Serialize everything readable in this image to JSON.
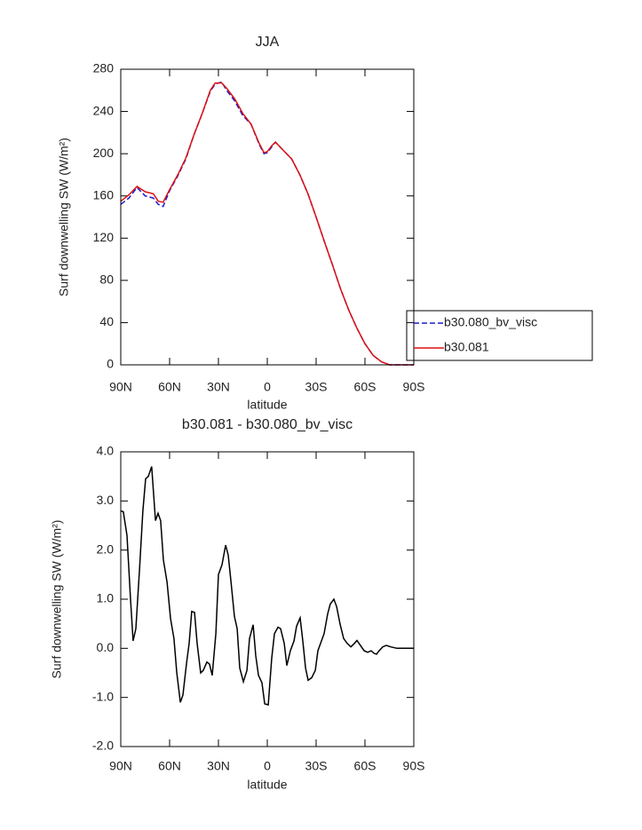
{
  "chart_data": [
    {
      "type": "line",
      "title": "JJA",
      "x_label": "latitude",
      "y_label": "Surf downwelling SW (W/m²)",
      "x": [
        90,
        85,
        80,
        75,
        70,
        67,
        64,
        60,
        55,
        50,
        45,
        40,
        35,
        32,
        28,
        25,
        20,
        15,
        10,
        5,
        2,
        0,
        -3,
        -5,
        -10,
        -15,
        -20,
        -25,
        -30,
        -35,
        -40,
        -45,
        -50,
        -55,
        -60,
        -65,
        -70,
        -75,
        -80,
        -85,
        -90
      ],
      "series": [
        {
          "name": "b30.080_bv_visc",
          "color": "#1a1acc",
          "linestyle": "dashed",
          "values": [
            152,
            158,
            168,
            160,
            158,
            152,
            150,
            165,
            179,
            195,
            218,
            238,
            259,
            266,
            268,
            260,
            250,
            236,
            228,
            209,
            200,
            201,
            207,
            211,
            203,
            195,
            180,
            162,
            140,
            117,
            95,
            72,
            52,
            35,
            20,
            9,
            3,
            0,
            0,
            0,
            0
          ]
        },
        {
          "name": "b30.081",
          "color": "#dd1111",
          "linestyle": "solid",
          "values": [
            155,
            161,
            169,
            164,
            162,
            155,
            154,
            166,
            180,
            196,
            218,
            238,
            260,
            267,
            267,
            262,
            252,
            238,
            228,
            210,
            201,
            202,
            208,
            211,
            203,
            195,
            180,
            162,
            140,
            117,
            95,
            72,
            52,
            35,
            20,
            9,
            3,
            0,
            0,
            0,
            0
          ]
        }
      ],
      "xlim": [
        90,
        -90
      ],
      "xticks": [
        {
          "value": 90,
          "label": "90N"
        },
        {
          "value": 60,
          "label": "60N"
        },
        {
          "value": 30,
          "label": "30N"
        },
        0,
        {
          "value": -30,
          "label": "30S"
        },
        {
          "value": -60,
          "label": "60S"
        },
        {
          "value": -90,
          "label": "90S"
        }
      ],
      "ylim": [
        0,
        280
      ],
      "yticks": [
        0,
        40,
        80,
        120,
        160,
        200,
        240,
        280
      ],
      "legend": "right"
    },
    {
      "type": "line",
      "title": "b30.081 - b30.080_bv_visc",
      "x_label": "latitude",
      "y_label": "Surf downwelling SW (W/m²)",
      "color": "#000000",
      "x": [
        90,
        88.4,
        86.2,
        84,
        82.4,
        80.7,
        78.5,
        76.4,
        74.7,
        73.1,
        71,
        68.7,
        67.1,
        65.5,
        63.8,
        61.6,
        59.4,
        57.3,
        55.6,
        53.4,
        51.8,
        49.6,
        48,
        46.4,
        44.7,
        43.1,
        40.9,
        39.3,
        37.1,
        35.5,
        33.8,
        31.6,
        30,
        27.8,
        25.6,
        24,
        22.4,
        20.2,
        18.5,
        16.9,
        14.7,
        12.5,
        10.9,
        8.7,
        7.1,
        5.4,
        3.3,
        1.6,
        -0.6,
        -2.7,
        -4.4,
        -6.6,
        -8.2,
        -10.4,
        -12,
        -14.2,
        -16.4,
        -18,
        -20.2,
        -21.8,
        -23.5,
        -25.1,
        -27.3,
        -29.5,
        -31.1,
        -33.3,
        -34.9,
        -37.1,
        -38.7,
        -40.9,
        -42.6,
        -44.7,
        -46.9,
        -49.1,
        -51.3,
        -53.5,
        -55.1,
        -56.8,
        -59.5,
        -61.7,
        -63.8,
        -65.5,
        -67.1,
        -68.7,
        -70.9,
        -73.1,
        -75.8,
        -79.6,
        -90
      ],
      "values": [
        2.8,
        2.78,
        2.3,
        1.0,
        0.15,
        0.4,
        1.6,
        2.8,
        3.45,
        3.5,
        3.7,
        2.6,
        2.75,
        2.6,
        1.8,
        1.35,
        0.6,
        0.2,
        -0.5,
        -1.1,
        -0.95,
        -0.3,
        0.1,
        0.75,
        0.73,
        0.1,
        -0.5,
        -0.45,
        -0.28,
        -0.32,
        -0.55,
        0.3,
        1.5,
        1.7,
        2.1,
        1.9,
        1.4,
        0.65,
        0.4,
        -0.4,
        -0.68,
        -0.45,
        0.2,
        0.48,
        -0.15,
        -0.55,
        -0.7,
        -1.13,
        -1.15,
        -0.2,
        0.3,
        0.43,
        0.4,
        0.1,
        -0.35,
        -0.05,
        0.15,
        0.45,
        0.62,
        0.15,
        -0.4,
        -0.65,
        -0.6,
        -0.45,
        -0.05,
        0.15,
        0.3,
        0.7,
        0.9,
        1.0,
        0.85,
        0.5,
        0.2,
        0.1,
        0.03,
        0.1,
        0.16,
        0.08,
        -0.05,
        -0.08,
        -0.05,
        -0.1,
        -0.12,
        -0.05,
        0.03,
        0.06,
        0.03,
        0,
        0
      ],
      "xlim": [
        90,
        -90
      ],
      "xticks": [
        {
          "value": 90,
          "label": "90N"
        },
        {
          "value": 60,
          "label": "60N"
        },
        {
          "value": 30,
          "label": "30N"
        },
        0,
        {
          "value": -30,
          "label": "30S"
        },
        {
          "value": -60,
          "label": "60S"
        },
        {
          "value": -90,
          "label": "90S"
        }
      ],
      "ylim": [
        -2,
        4
      ],
      "yticks": [
        {
          "value": -2,
          "label": "-2.0"
        },
        {
          "value": -1,
          "label": "-1.0"
        },
        {
          "value": 0,
          "label": "0.0"
        },
        {
          "value": 1,
          "label": "1.0"
        },
        {
          "value": 2,
          "label": "2.0"
        },
        {
          "value": 3,
          "label": "3.0"
        },
        {
          "value": 4,
          "label": "4.0"
        }
      ]
    }
  ]
}
